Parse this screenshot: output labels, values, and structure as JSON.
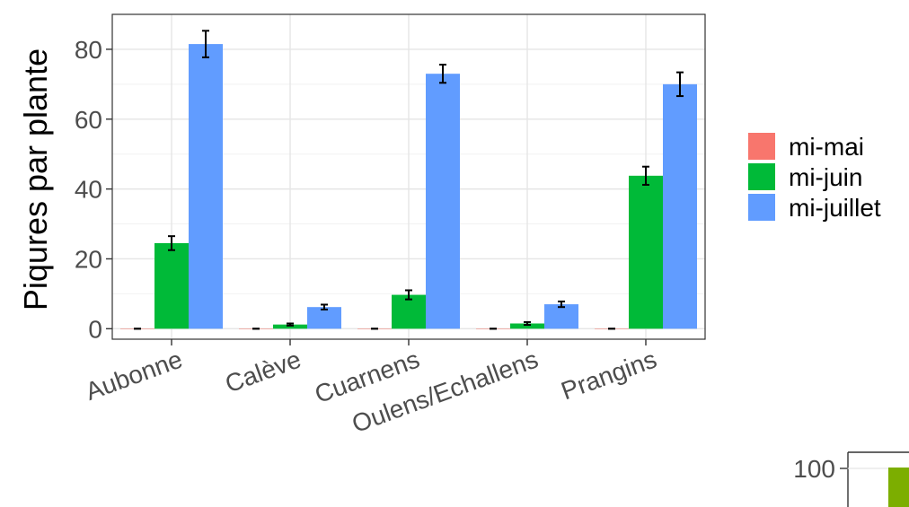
{
  "chart_data": [
    {
      "type": "bar",
      "title": "",
      "xlabel": "",
      "ylabel": "Piqures par plante",
      "ylim": [
        -3,
        90
      ],
      "yticks": [
        0,
        20,
        40,
        60,
        80
      ],
      "categories": [
        "Aubonne",
        "Calève",
        "Cuarnens",
        "Oulens/Echallens",
        "Prangins"
      ],
      "series": [
        {
          "name": "mi-mai",
          "color": "#F8766D",
          "values": [
            0,
            0,
            0,
            0,
            0
          ],
          "error": [
            0,
            0,
            0,
            0,
            0
          ]
        },
        {
          "name": "mi-juin",
          "color": "#00BA38",
          "values": [
            24.5,
            1.2,
            9.7,
            1.5,
            43.8
          ],
          "error": [
            2.0,
            0.3,
            1.3,
            0.4,
            2.6
          ]
        },
        {
          "name": "mi-juillet",
          "color": "#619CFF",
          "values": [
            81.5,
            6.2,
            73.0,
            7.0,
            70.0
          ],
          "error": [
            3.8,
            0.7,
            2.6,
            0.8,
            3.4
          ]
        }
      ],
      "grid": true,
      "legend_position": "right"
    },
    {
      "type": "bar",
      "title": "",
      "yticks": [
        100
      ],
      "note": "partially visible second chart at bottom-right",
      "series": [
        {
          "color": "#7CAE00",
          "values": [
            100
          ]
        }
      ]
    }
  ]
}
